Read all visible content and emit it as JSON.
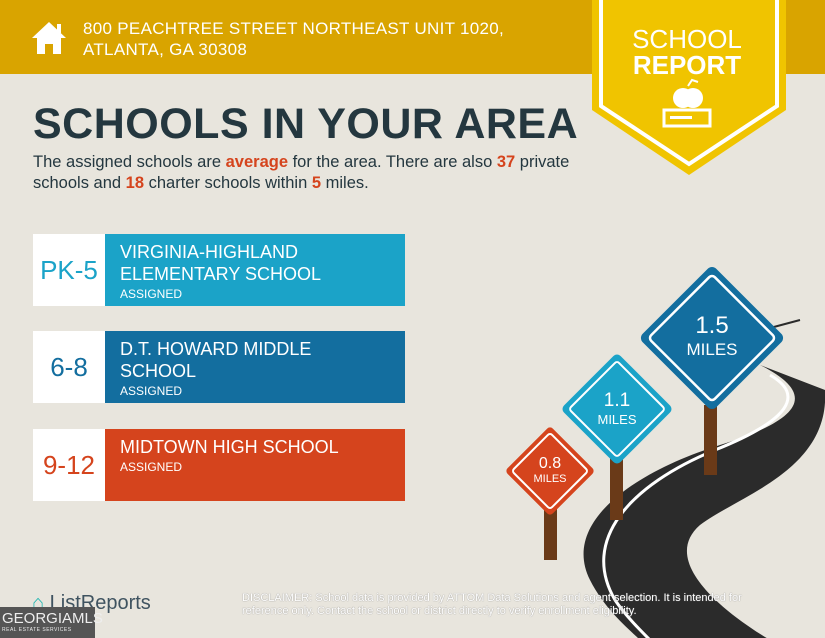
{
  "header": {
    "address_line1": "800 PEACHTREE STREET NORTHEAST UNIT 1020,",
    "address_line2": "ATLANTA, GA 30308",
    "badge_line1": "SCHOOL",
    "badge_line2": "REPORT"
  },
  "main": {
    "title": "SCHOOLS IN YOUR AREA",
    "intro": {
      "p1": "The assigned schools are ",
      "rating": "average",
      "p2": " for the area. There are also ",
      "private_count": "37",
      "p3": " private schools and ",
      "charter_count": "18",
      "p4": " charter schools within ",
      "miles": "5",
      "p5": " miles."
    },
    "schools": [
      {
        "grades": "PK-5",
        "name": "VIRGINIA-HIGHLAND ELEMENTARY SCHOOL",
        "status": "ASSIGNED",
        "color": "#1ba3c8"
      },
      {
        "grades": "6-8",
        "name": "D.T. HOWARD MIDDLE SCHOOL",
        "status": "ASSIGNED",
        "color": "#136e9f"
      },
      {
        "grades": "9-12",
        "name": "MIDTOWN HIGH SCHOOL",
        "status": "ASSIGNED",
        "color": "#d5441d"
      }
    ],
    "signs": [
      {
        "value": "0.8",
        "unit": "MILES"
      },
      {
        "value": "1.1",
        "unit": "MILES"
      },
      {
        "value": "1.5",
        "unit": "MILES"
      }
    ]
  },
  "footer": {
    "brand": "ListReports",
    "mls_logo": "GEORGIAMLS",
    "mls_sub": "REAL ESTATE SERVICES",
    "disclaimer_label": "DISCLAIMER:",
    "disclaimer": " School data is provided by ATTOM Data Solutions and agent selection. It is intended for reference only. Contact the school or district directly to verify enrollment eligibility."
  },
  "colors": {
    "header": "#d9a400",
    "badge": "#f0c400",
    "background": "#e8e5dd",
    "accent": "#d5441d"
  }
}
